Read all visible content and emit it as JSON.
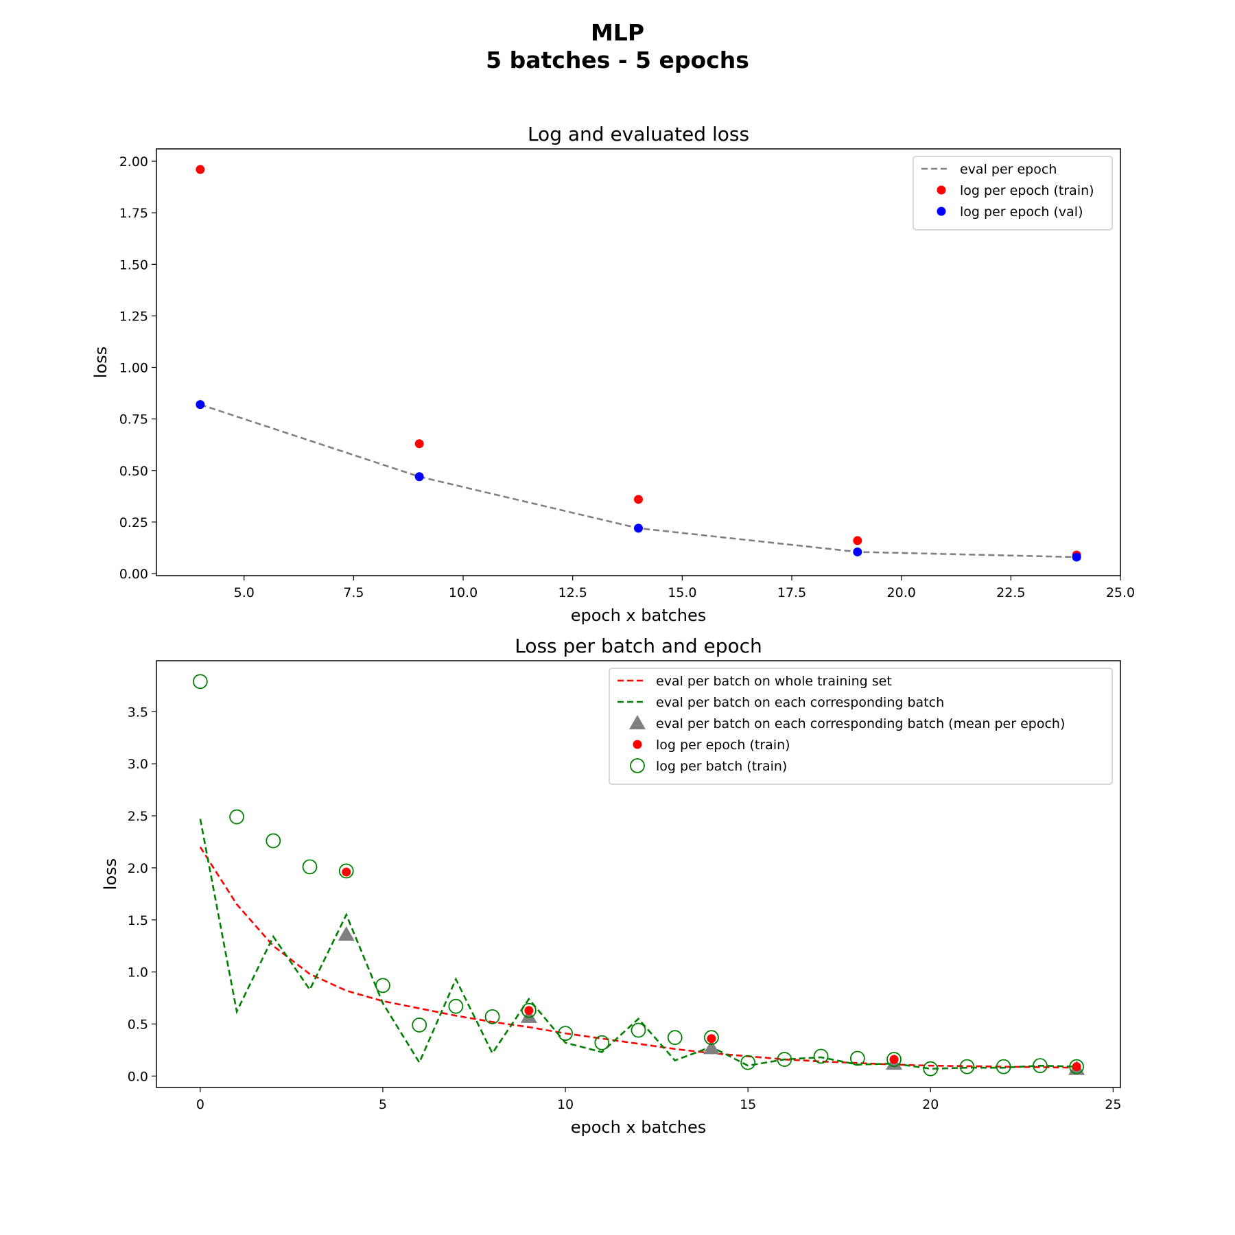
{
  "suptitle": [
    "MLP",
    "5 batches - 5 epochs"
  ],
  "chart_data": [
    {
      "type": "scatter",
      "title": "Log and evaluated loss",
      "xlabel": "epoch x batches",
      "ylabel": "loss",
      "xlim": [
        3.0,
        25.0
      ],
      "ylim": [
        -0.01,
        2.06
      ],
      "xticks": [
        5.0,
        7.5,
        10.0,
        12.5,
        15.0,
        17.5,
        20.0,
        22.5,
        25.0
      ],
      "xtick_labels": [
        "5.0",
        "7.5",
        "10.0",
        "12.5",
        "15.0",
        "17.5",
        "20.0",
        "22.5",
        "25.0"
      ],
      "yticks": [
        0.0,
        0.25,
        0.5,
        0.75,
        1.0,
        1.25,
        1.5,
        1.75,
        2.0
      ],
      "ytick_labels": [
        "0.00",
        "0.25",
        "0.50",
        "0.75",
        "1.00",
        "1.25",
        "1.50",
        "1.75",
        "2.00"
      ],
      "legend_position": "top-right",
      "grid": false,
      "series": [
        {
          "name": "eval per epoch",
          "kind": "line",
          "style": "dashed",
          "color": "#808080",
          "x": [
            4,
            9,
            14,
            19,
            24
          ],
          "y": [
            0.82,
            0.47,
            0.22,
            0.105,
            0.08
          ]
        },
        {
          "name": "log per epoch (train)",
          "kind": "scatter",
          "marker": "dot",
          "color": "#ff0000",
          "x": [
            4,
            9,
            14,
            19,
            24
          ],
          "y": [
            1.96,
            0.63,
            0.36,
            0.16,
            0.09
          ]
        },
        {
          "name": "log per epoch (val)",
          "kind": "scatter",
          "marker": "dot",
          "color": "#0000ff",
          "x": [
            4,
            9,
            14,
            19,
            24
          ],
          "y": [
            0.82,
            0.47,
            0.22,
            0.105,
            0.08
          ]
        }
      ]
    },
    {
      "type": "line",
      "title": "Loss per batch and epoch",
      "xlabel": "epoch x batches",
      "ylabel": "loss",
      "xlim": [
        -1.2,
        25.2
      ],
      "ylim": [
        -0.11,
        3.99
      ],
      "xticks": [
        0,
        5,
        10,
        15,
        20,
        25
      ],
      "xtick_labels": [
        "0",
        "5",
        "10",
        "15",
        "20",
        "25"
      ],
      "yticks": [
        0.0,
        0.5,
        1.0,
        1.5,
        2.0,
        2.5,
        3.0,
        3.5
      ],
      "ytick_labels": [
        "0.0",
        "0.5",
        "1.0",
        "1.5",
        "2.0",
        "2.5",
        "3.0",
        "3.5"
      ],
      "legend_position": "top-right",
      "grid": false,
      "series": [
        {
          "name": "eval per batch on whole training set",
          "kind": "line",
          "style": "dashed",
          "color": "#ff0000",
          "x": [
            0,
            1,
            2,
            3,
            4,
            5,
            6,
            7,
            8,
            9,
            10,
            11,
            12,
            13,
            14,
            15,
            16,
            17,
            18,
            19,
            20,
            21,
            22,
            23,
            24
          ],
          "y": [
            2.2,
            1.65,
            1.25,
            0.98,
            0.82,
            0.72,
            0.65,
            0.58,
            0.52,
            0.47,
            0.41,
            0.36,
            0.31,
            0.26,
            0.22,
            0.19,
            0.16,
            0.14,
            0.125,
            0.11,
            0.1,
            0.095,
            0.09,
            0.085,
            0.08
          ]
        },
        {
          "name": "eval per batch on each corresponding batch",
          "kind": "line",
          "style": "dashed",
          "color": "#008000",
          "x": [
            0,
            1,
            2,
            3,
            4,
            5,
            6,
            7,
            8,
            9,
            10,
            11,
            12,
            13,
            14,
            15,
            16,
            17,
            18,
            19,
            20,
            21,
            22,
            23,
            24
          ],
          "y": [
            2.47,
            0.62,
            1.34,
            0.83,
            1.55,
            0.7,
            0.13,
            0.93,
            0.22,
            0.74,
            0.32,
            0.23,
            0.55,
            0.15,
            0.28,
            0.1,
            0.16,
            0.18,
            0.11,
            0.12,
            0.07,
            0.08,
            0.08,
            0.1,
            0.09
          ]
        },
        {
          "name": "eval per batch on each corresponding batch (mean per epoch)",
          "kind": "scatter",
          "marker": "triangle",
          "color": "#808080",
          "x": [
            4,
            9,
            14,
            19,
            24
          ],
          "y": [
            1.36,
            0.57,
            0.27,
            0.12,
            0.07
          ]
        },
        {
          "name": "log per epoch (train)",
          "kind": "scatter",
          "marker": "dot",
          "color": "#ff0000",
          "x": [
            4,
            9,
            14,
            19,
            24
          ],
          "y": [
            1.96,
            0.63,
            0.36,
            0.16,
            0.09
          ]
        },
        {
          "name": "log per batch (train)",
          "kind": "scatter",
          "marker": "ring",
          "color": "#008000",
          "x": [
            0,
            1,
            2,
            3,
            4,
            5,
            6,
            7,
            8,
            9,
            10,
            11,
            12,
            13,
            14,
            15,
            16,
            17,
            18,
            19,
            20,
            21,
            22,
            23,
            24
          ],
          "y": [
            3.79,
            2.49,
            2.26,
            2.01,
            1.97,
            0.87,
            0.49,
            0.67,
            0.57,
            0.63,
            0.41,
            0.32,
            0.44,
            0.37,
            0.37,
            0.13,
            0.16,
            0.19,
            0.17,
            0.16,
            0.07,
            0.09,
            0.09,
            0.1,
            0.09
          ]
        }
      ]
    }
  ]
}
